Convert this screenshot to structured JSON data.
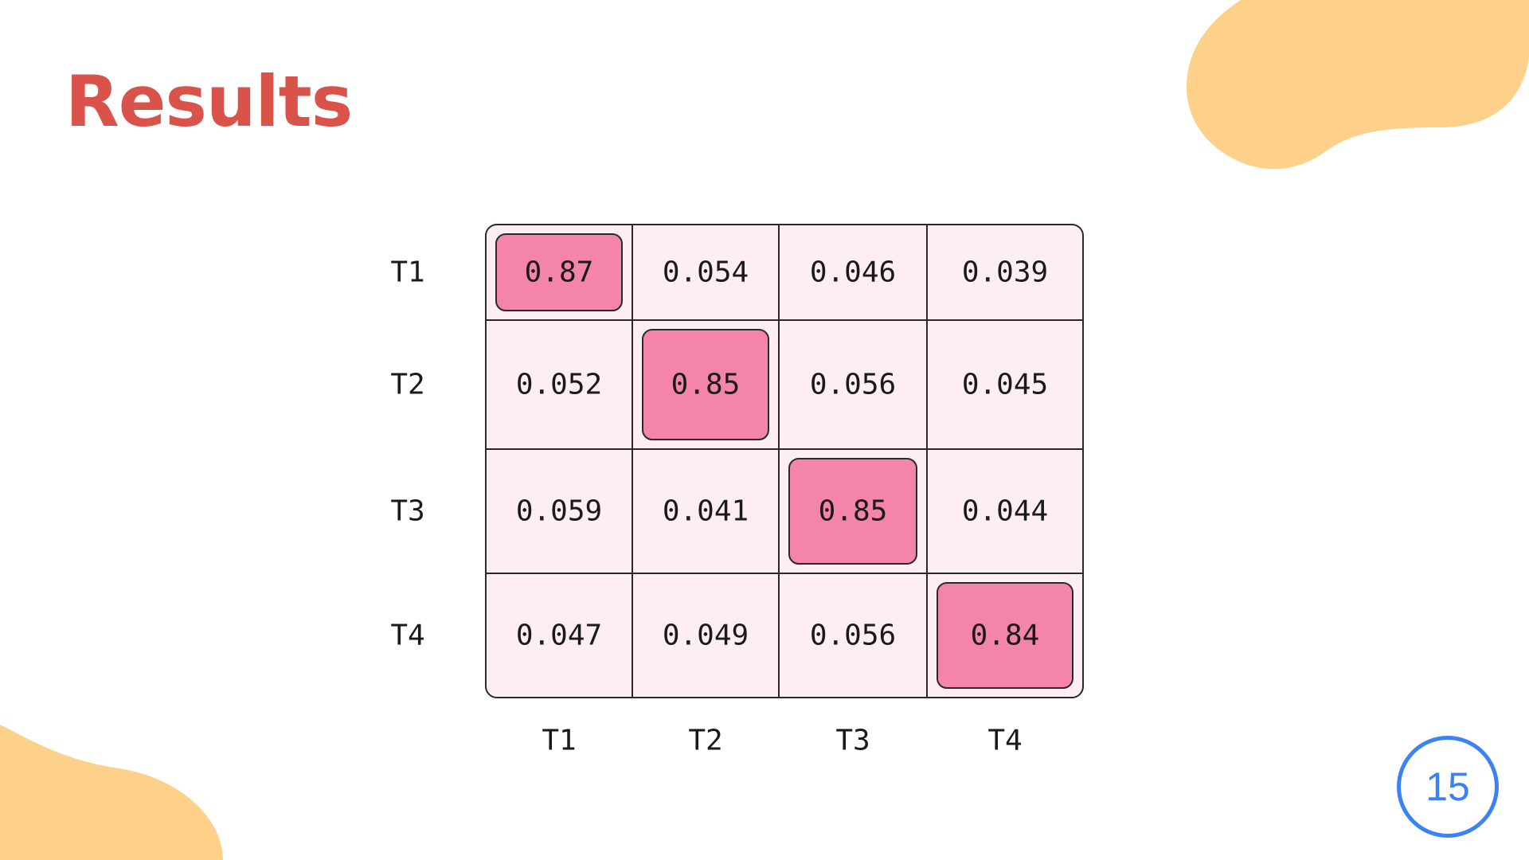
{
  "slide": {
    "title": "Results",
    "page_number": "15"
  },
  "colors": {
    "title": "#d9534a",
    "blob": "#fdd189",
    "cell_background": "#fdeef2",
    "highlight": "#f584ad",
    "grid_line": "#2a2a2a",
    "page_badge": "#3b82f6"
  },
  "chart_data": {
    "type": "heatmap",
    "rows": [
      "T1",
      "T2",
      "T3",
      "T4"
    ],
    "columns": [
      "T1",
      "T2",
      "T3",
      "T4"
    ],
    "values": [
      [
        "0.87",
        "0.054",
        "0.046",
        "0.039"
      ],
      [
        "0.052",
        "0.85",
        "0.056",
        "0.045"
      ],
      [
        "0.059",
        "0.041",
        "0.85",
        "0.044"
      ],
      [
        "0.047",
        "0.049",
        "0.056",
        "0.84"
      ]
    ],
    "highlighted": "diagonal"
  }
}
